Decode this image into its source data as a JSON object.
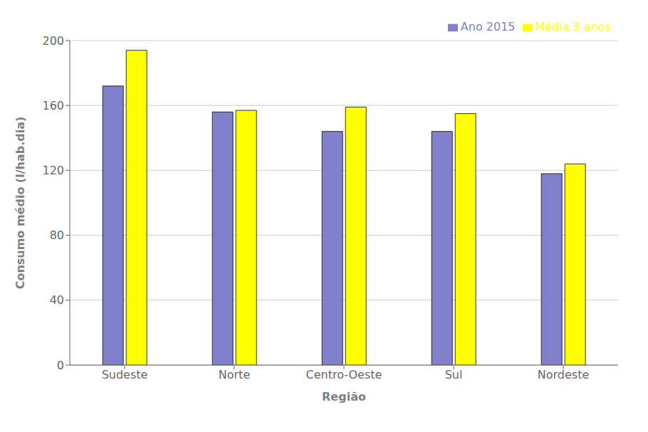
{
  "chart_data": {
    "type": "bar",
    "categories": [
      "Sudeste",
      "Norte",
      "Centro-Oeste",
      "Sul",
      "Nordeste"
    ],
    "series": [
      {
        "name": "Ano 2015",
        "color": "#8080cc",
        "values": [
          172,
          156,
          144,
          144,
          118
        ]
      },
      {
        "name": "Média 3 anos",
        "color": "#ffff00",
        "values": [
          194,
          157,
          159,
          155,
          124
        ]
      }
    ],
    "xlabel": "Região",
    "ylabel": "Consumo médio (l/hab.dia)",
    "ylim": [
      0,
      200
    ],
    "yticks": [
      0,
      40,
      80,
      120,
      160,
      200
    ],
    "grid": true,
    "legend": "upper right"
  }
}
